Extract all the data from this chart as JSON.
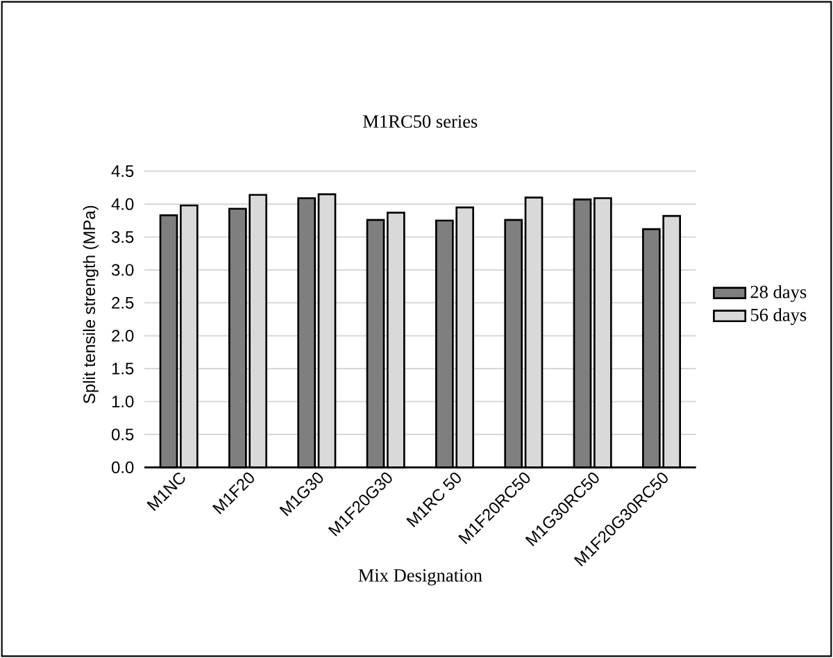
{
  "chart_data": {
    "type": "bar",
    "title": "M1RC50 series",
    "xlabel": "Mix Designation",
    "ylabel": "Split tensile strength (MPa)",
    "categories": [
      "M1NC",
      "M1F20",
      "M1G30",
      "M1F20G30",
      "M1RC 50",
      "M1F20RC50",
      "M1G30RC50",
      "M1F20G30RC50"
    ],
    "series": [
      {
        "name": "28 days",
        "color": "#7f7f7f",
        "values": [
          3.83,
          3.93,
          4.09,
          3.76,
          3.75,
          3.76,
          4.07,
          3.62
        ]
      },
      {
        "name": "56 days",
        "color": "#d9d9d9",
        "values": [
          3.98,
          4.14,
          4.15,
          3.87,
          3.95,
          4.1,
          4.09,
          3.82
        ]
      }
    ],
    "ylim": [
      0,
      4.5
    ],
    "yticks": [
      {
        "value": 0,
        "label": "0.0"
      },
      {
        "value": 0.5,
        "label": "0.5"
      },
      {
        "value": 1,
        "label": "1.0"
      },
      {
        "value": 1.5,
        "label": "1.5"
      },
      {
        "value": 2,
        "label": "2.0"
      },
      {
        "value": 2.5,
        "label": "2.5"
      },
      {
        "value": 3,
        "label": "3.0"
      },
      {
        "value": 3.5,
        "label": "3.5"
      },
      {
        "value": 4,
        "label": "4.0"
      },
      {
        "value": 4.5,
        "label": "4.5"
      }
    ],
    "grid": "y",
    "legend": "right"
  }
}
